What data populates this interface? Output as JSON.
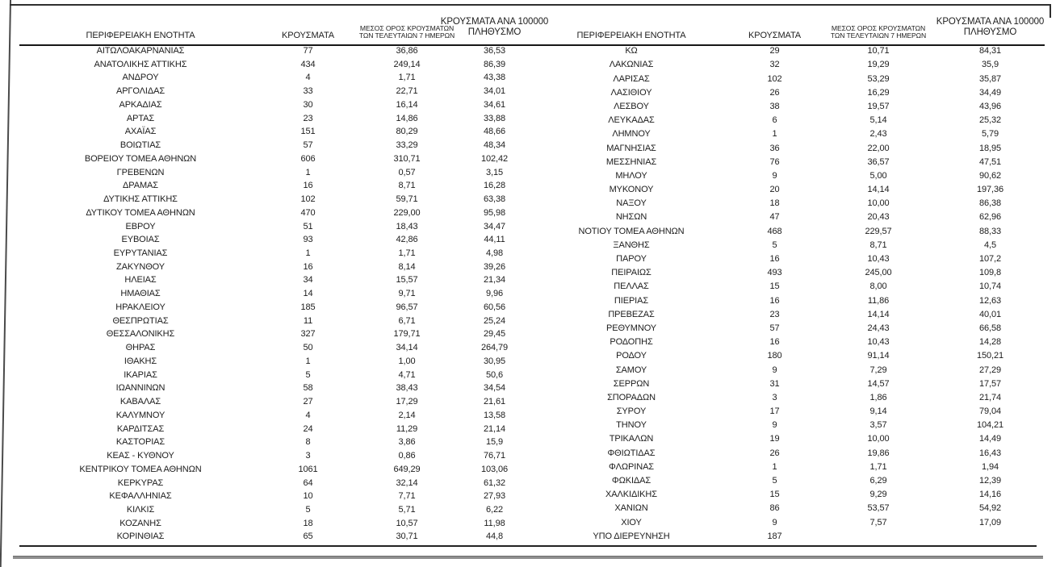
{
  "columns": {
    "region": "ΠΕΡΙΦΕΡΕΙΑΚΗ ΕΝΟΤΗΤΑ",
    "cases": "ΚΡΟΥΣΜΑΤΑ",
    "avg7_line1": "ΜΕΣΟΣ ΟΡΟΣ ΚΡΟΥΣΜΑΤΩΝ",
    "avg7_line2": "ΤΩΝ ΤΕΛΕΥΤΑΙΩΝ 7 ΗΜΕΡΩΝ",
    "per100k_line1": "ΚΡΟΥΣΜΑΤΑ ΑΝΑ 100000",
    "per100k_line2": "ΠΛΗΘΥΣΜΟ"
  },
  "left_table": {
    "rows": [
      [
        "ΑΙΤΩΛΟΑΚΑΡΝΑΝΙΑΣ",
        "77",
        "36,86",
        "36,53"
      ],
      [
        "ΑΝΑΤΟΛΙΚΗΣ ΑΤΤΙΚΗΣ",
        "434",
        "249,14",
        "86,39"
      ],
      [
        "ΑΝΔΡΟΥ",
        "4",
        "1,71",
        "43,38"
      ],
      [
        "ΑΡΓΟΛΙΔΑΣ",
        "33",
        "22,71",
        "34,01"
      ],
      [
        "ΑΡΚΑΔΙΑΣ",
        "30",
        "16,14",
        "34,61"
      ],
      [
        "ΑΡΤΑΣ",
        "23",
        "14,86",
        "33,88"
      ],
      [
        "ΑΧΑΪΑΣ",
        "151",
        "80,29",
        "48,66"
      ],
      [
        "ΒΟΙΩΤΙΑΣ",
        "57",
        "33,29",
        "48,34"
      ],
      [
        "ΒΟΡΕΙΟΥ ΤΟΜΕΑ ΑΘΗΝΩΝ",
        "606",
        "310,71",
        "102,42"
      ],
      [
        "ΓΡΕΒΕΝΩΝ",
        "1",
        "0,57",
        "3,15"
      ],
      [
        "ΔΡΑΜΑΣ",
        "16",
        "8,71",
        "16,28"
      ],
      [
        "ΔΥΤΙΚΗΣ ΑΤΤΙΚΗΣ",
        "102",
        "59,71",
        "63,38"
      ],
      [
        "ΔΥΤΙΚΟΥ ΤΟΜΕΑ ΑΘΗΝΩΝ",
        "470",
        "229,00",
        "95,98"
      ],
      [
        "ΕΒΡΟΥ",
        "51",
        "18,43",
        "34,47"
      ],
      [
        "ΕΥΒΟΙΑΣ",
        "93",
        "42,86",
        "44,11"
      ],
      [
        "ΕΥΡΥΤΑΝΙΑΣ",
        "1",
        "1,71",
        "4,98"
      ],
      [
        "ΖΑΚΥΝΘΟΥ",
        "16",
        "8,14",
        "39,26"
      ],
      [
        "ΗΛΕΙΑΣ",
        "34",
        "15,57",
        "21,34"
      ],
      [
        "ΗΜΑΘΙΑΣ",
        "14",
        "9,71",
        "9,96"
      ],
      [
        "ΗΡΑΚΛΕΙΟΥ",
        "185",
        "96,57",
        "60,56"
      ],
      [
        "ΘΕΣΠΡΩΤΙΑΣ",
        "11",
        "6,71",
        "25,24"
      ],
      [
        "ΘΕΣΣΑΛΟΝΙΚΗΣ",
        "327",
        "179,71",
        "29,45"
      ],
      [
        "ΘΗΡΑΣ",
        "50",
        "34,14",
        "264,79"
      ],
      [
        "ΙΘΑΚΗΣ",
        "1",
        "1,00",
        "30,95"
      ],
      [
        "ΙΚΑΡΙΑΣ",
        "5",
        "4,71",
        "50,6"
      ],
      [
        "ΙΩΑΝΝΙΝΩΝ",
        "58",
        "38,43",
        "34,54"
      ],
      [
        "ΚΑΒΑΛΑΣ",
        "27",
        "17,29",
        "21,61"
      ],
      [
        "ΚΑΛΥΜΝΟΥ",
        "4",
        "2,14",
        "13,58"
      ],
      [
        "ΚΑΡΔΙΤΣΑΣ",
        "24",
        "11,29",
        "21,14"
      ],
      [
        "ΚΑΣΤΟΡΙΑΣ",
        "8",
        "3,86",
        "15,9"
      ],
      [
        "ΚΕΑΣ - ΚΥΘΝΟΥ",
        "3",
        "0,86",
        "76,71"
      ],
      [
        "ΚΕΝΤΡΙΚΟΥ ΤΟΜΕΑ ΑΘΗΝΩΝ",
        "1061",
        "649,29",
        "103,06"
      ],
      [
        "ΚΕΡΚΥΡΑΣ",
        "64",
        "32,14",
        "61,32"
      ],
      [
        "ΚΕΦΑΛΛΗΝΙΑΣ",
        "10",
        "7,71",
        "27,93"
      ],
      [
        "ΚΙΛΚΙΣ",
        "5",
        "5,71",
        "6,22"
      ],
      [
        "ΚΟΖΑΝΗΣ",
        "18",
        "10,57",
        "11,98"
      ],
      [
        "ΚΟΡΙΝΘΙΑΣ",
        "65",
        "30,71",
        "44,8"
      ]
    ]
  },
  "right_table": {
    "rows": [
      [
        "ΚΩ",
        "29",
        "10,71",
        "84,31"
      ],
      [
        "ΛΑΚΩΝΙΑΣ",
        "32",
        "19,29",
        "35,9"
      ],
      [
        "ΛΑΡΙΣΑΣ",
        "102",
        "53,29",
        "35,87"
      ],
      [
        "ΛΑΣΙΘΙΟΥ",
        "26",
        "16,29",
        "34,49"
      ],
      [
        "ΛΕΣΒΟΥ",
        "38",
        "19,57",
        "43,96"
      ],
      [
        "ΛΕΥΚΑΔΑΣ",
        "6",
        "5,14",
        "25,32"
      ],
      [
        "ΛΗΜΝΟΥ",
        "1",
        "2,43",
        "5,79"
      ],
      [
        "ΜΑΓΝΗΣΙΑΣ",
        "36",
        "22,00",
        "18,95"
      ],
      [
        "ΜΕΣΣΗΝΙΑΣ",
        "76",
        "36,57",
        "47,51"
      ],
      [
        "ΜΗΛΟΥ",
        "9",
        "5,00",
        "90,62"
      ],
      [
        "ΜΥΚΟΝΟΥ",
        "20",
        "14,14",
        "197,36"
      ],
      [
        "ΝΑΞΟΥ",
        "18",
        "10,00",
        "86,38"
      ],
      [
        "ΝΗΣΩΝ",
        "47",
        "20,43",
        "62,96"
      ],
      [
        "ΝΟΤΙΟΥ ΤΟΜΕΑ ΑΘΗΝΩΝ",
        "468",
        "229,57",
        "88,33"
      ],
      [
        "ΞΑΝΘΗΣ",
        "5",
        "8,71",
        "4,5"
      ],
      [
        "ΠΑΡΟΥ",
        "16",
        "10,43",
        "107,2"
      ],
      [
        "ΠΕΙΡΑΙΩΣ",
        "493",
        "245,00",
        "109,8"
      ],
      [
        "ΠΕΛΛΑΣ",
        "15",
        "8,00",
        "10,74"
      ],
      [
        "ΠΙΕΡΙΑΣ",
        "16",
        "11,86",
        "12,63"
      ],
      [
        "ΠΡΕΒΕΖΑΣ",
        "23",
        "14,14",
        "40,01"
      ],
      [
        "ΡΕΘΥΜΝΟΥ",
        "57",
        "24,43",
        "66,58"
      ],
      [
        "ΡΟΔΟΠΗΣ",
        "16",
        "10,43",
        "14,28"
      ],
      [
        "ΡΟΔΟΥ",
        "180",
        "91,14",
        "150,21"
      ],
      [
        "ΣΑΜΟΥ",
        "9",
        "7,29",
        "27,29"
      ],
      [
        "ΣΕΡΡΩΝ",
        "31",
        "14,57",
        "17,57"
      ],
      [
        "ΣΠΟΡΑΔΩΝ",
        "3",
        "1,86",
        "21,74"
      ],
      [
        "ΣΥΡΟΥ",
        "17",
        "9,14",
        "79,04"
      ],
      [
        "ΤΗΝΟΥ",
        "9",
        "3,57",
        "104,21"
      ],
      [
        "ΤΡΙΚΑΛΩΝ",
        "19",
        "10,00",
        "14,49"
      ],
      [
        "ΦΘΙΩΤΙΔΑΣ",
        "26",
        "19,86",
        "16,43"
      ],
      [
        "ΦΛΩΡΙΝΑΣ",
        "1",
        "1,71",
        "1,94"
      ],
      [
        "ΦΩΚΙΔΑΣ",
        "5",
        "6,29",
        "12,39"
      ],
      [
        "ΧΑΛΚΙΔΙΚΗΣ",
        "15",
        "9,29",
        "14,16"
      ],
      [
        "ΧΑΝΙΩΝ",
        "86",
        "53,57",
        "54,92"
      ],
      [
        "ΧΙΟΥ",
        "9",
        "7,57",
        "17,09"
      ],
      [
        "ΥΠΟ ΔΙΕΡΕΥΝΗΣΗ",
        "187",
        "",
        ""
      ]
    ]
  },
  "colors": {
    "text": "#1c1c1c",
    "rule_dark": "#161616",
    "rule_gray": "#8f8f8f",
    "frame": "#2f2f2f"
  }
}
